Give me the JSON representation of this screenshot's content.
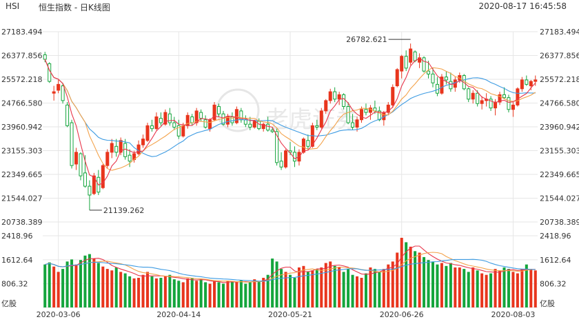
{
  "header": {
    "symbol": "HSI",
    "title": "恒生指数 - 日K线图",
    "timestamp": "2020-08-17 16:45:58"
  },
  "watermark": "老虎证券",
  "colors": {
    "up": "#e8351d",
    "down": "#14a53c",
    "ma5": "#e8354a",
    "ma10": "#f3a24a",
    "ma20": "#3d9be2",
    "grid": "#e6e6e6"
  },
  "chart_data": {
    "type": "candlestick",
    "price_axis": {
      "ylim": [
        20738.389,
        27183.494
      ],
      "tick_labels": [
        "27183.494",
        "26377.856",
        "25572.218",
        "24766.580",
        "23960.942",
        "23155.303",
        "22349.665",
        "21544.027",
        "20738.389"
      ]
    },
    "volume_axis": {
      "ylim": [
        0,
        2418.96
      ],
      "unit": "亿股",
      "tick_labels": [
        "2418.96",
        "1612.64",
        "806.32"
      ]
    },
    "x_labels": [
      "2020-03-06",
      "2020-04-14",
      "2020-05-21",
      "2020-06-26",
      "2020-08-03"
    ],
    "x_label_index": [
      3,
      30,
      55,
      80,
      105
    ],
    "annotations": {
      "high_label": "26782.621",
      "high_index": 82,
      "high_value": 26782.621,
      "low_label": "21139.262",
      "low_index": 10,
      "low_value": 21139.262
    },
    "ohlc": [
      [
        26400,
        26500,
        26150,
        26250
      ],
      [
        26100,
        26150,
        25450,
        25500
      ],
      [
        25100,
        25350,
        24850,
        25150
      ],
      [
        25200,
        25550,
        25100,
        25400
      ],
      [
        25350,
        25450,
        24750,
        24850
      ],
      [
        24700,
        24800,
        23950,
        24000
      ],
      [
        24100,
        24200,
        22550,
        22650
      ],
      [
        22700,
        23250,
        22500,
        23100
      ],
      [
        23050,
        23100,
        22150,
        22300
      ],
      [
        22400,
        23000,
        21900,
        21950
      ],
      [
        21950,
        22150,
        21139.262,
        21650
      ],
      [
        21700,
        22400,
        21650,
        22300
      ],
      [
        22250,
        22500,
        21650,
        21750
      ],
      [
        21900,
        22700,
        21850,
        22650
      ],
      [
        22650,
        23200,
        22550,
        23100
      ],
      [
        23100,
        23550,
        22900,
        23400
      ],
      [
        23300,
        23550,
        22950,
        23100
      ],
      [
        23100,
        23600,
        23000,
        23500
      ],
      [
        23400,
        23550,
        22850,
        22950
      ],
      [
        23000,
        23200,
        22600,
        22800
      ],
      [
        22850,
        23150,
        22750,
        23050
      ],
      [
        23050,
        23500,
        23000,
        23350
      ],
      [
        23350,
        23700,
        23250,
        23550
      ],
      [
        23500,
        24100,
        23450,
        24000
      ],
      [
        24000,
        24200,
        23800,
        23900
      ],
      [
        23900,
        24450,
        23850,
        24300
      ],
      [
        24250,
        24450,
        24000,
        24100
      ],
      [
        24050,
        24550,
        24000,
        24450
      ],
      [
        24400,
        24600,
        24000,
        24100
      ],
      [
        24100,
        24300,
        23850,
        23950
      ],
      [
        24000,
        24200,
        23550,
        23650
      ],
      [
        23650,
        24100,
        23600,
        24000
      ],
      [
        24000,
        24450,
        23900,
        24350
      ],
      [
        24300,
        24400,
        24000,
        24100
      ],
      [
        24100,
        24600,
        24000,
        24500
      ],
      [
        24450,
        24550,
        24150,
        24250
      ],
      [
        24200,
        24350,
        23900,
        23950
      ],
      [
        23900,
        24250,
        23800,
        24200
      ],
      [
        24200,
        24800,
        24150,
        24700
      ],
      [
        24650,
        24750,
        24300,
        24400
      ],
      [
        24400,
        24500,
        24000,
        24050
      ],
      [
        24050,
        24400,
        23950,
        24300
      ],
      [
        24300,
        24450,
        24000,
        24100
      ],
      [
        24100,
        24650,
        24050,
        24550
      ],
      [
        24500,
        24600,
        24100,
        24200
      ],
      [
        24200,
        24350,
        23950,
        24050
      ],
      [
        24050,
        24300,
        23850,
        23950
      ],
      [
        23950,
        24200,
        23900,
        24150
      ],
      [
        24150,
        24250,
        23850,
        23900
      ],
      [
        23900,
        24100,
        23800,
        24050
      ],
      [
        24050,
        24300,
        23800,
        23850
      ],
      [
        23850,
        23950,
        23750,
        23800
      ],
      [
        23800,
        23900,
        22650,
        22750
      ],
      [
        22800,
        23100,
        22500,
        22600
      ],
      [
        22600,
        23200,
        22550,
        23150
      ],
      [
        23150,
        23450,
        23000,
        23100
      ],
      [
        23100,
        23300,
        22600,
        22800
      ],
      [
        22800,
        23200,
        22650,
        23100
      ],
      [
        23100,
        23600,
        23050,
        23550
      ],
      [
        23500,
        23700,
        23200,
        23300
      ],
      [
        23300,
        24100,
        23250,
        24000
      ],
      [
        24000,
        24200,
        23850,
        23950
      ],
      [
        23950,
        24600,
        23900,
        24500
      ],
      [
        24500,
        24900,
        24400,
        24850
      ],
      [
        24850,
        25250,
        24750,
        25150
      ],
      [
        25150,
        25300,
        24800,
        24900
      ],
      [
        24900,
        25150,
        24700,
        25050
      ],
      [
        25050,
        25100,
        24550,
        24650
      ],
      [
        24650,
        24800,
        24050,
        24100
      ],
      [
        24100,
        24400,
        23850,
        23950
      ],
      [
        23950,
        24300,
        23800,
        24200
      ],
      [
        24200,
        24650,
        24100,
        24550
      ],
      [
        24550,
        24750,
        24350,
        24450
      ],
      [
        24450,
        24700,
        24200,
        24600
      ],
      [
        24600,
        24850,
        24400,
        24500
      ],
      [
        24500,
        24650,
        24150,
        24200
      ],
      [
        24200,
        24500,
        24000,
        24450
      ],
      [
        24450,
        24800,
        24350,
        24700
      ],
      [
        24700,
        25400,
        24600,
        25300
      ],
      [
        25350,
        25950,
        25300,
        25900
      ],
      [
        25850,
        26400,
        25600,
        26350
      ],
      [
        26350,
        26550,
        25850,
        25950
      ],
      [
        26150,
        26782.621,
        26050,
        26600
      ],
      [
        26500,
        26550,
        26150,
        26200
      ],
      [
        26150,
        26450,
        25950,
        26300
      ],
      [
        26300,
        26350,
        25800,
        25850
      ],
      [
        25850,
        26200,
        25600,
        25750
      ],
      [
        25750,
        25950,
        25300,
        25450
      ],
      [
        25400,
        25650,
        25000,
        25100
      ],
      [
        25100,
        25750,
        25050,
        25650
      ],
      [
        25650,
        25850,
        25400,
        25550
      ],
      [
        25500,
        25800,
        25150,
        25250
      ],
      [
        25300,
        25650,
        25150,
        25550
      ],
      [
        25550,
        25800,
        25450,
        25700
      ],
      [
        25700,
        25750,
        25200,
        25250
      ],
      [
        25250,
        25300,
        24800,
        24900
      ],
      [
        24900,
        25200,
        24750,
        25100
      ],
      [
        25100,
        25200,
        24650,
        24750
      ],
      [
        24750,
        25000,
        24550,
        24850
      ],
      [
        24850,
        25100,
        24650,
        24900
      ],
      [
        24900,
        25000,
        24500,
        24600
      ],
      [
        24600,
        24900,
        24350,
        24800
      ],
      [
        24800,
        25150,
        24700,
        25050
      ],
      [
        25050,
        25300,
        24900,
        24950
      ],
      [
        24950,
        25050,
        24450,
        24550
      ],
      [
        24550,
        24800,
        24300,
        24700
      ],
      [
        24700,
        25300,
        24650,
        25250
      ],
      [
        25250,
        25650,
        25150,
        25550
      ],
      [
        25550,
        25700,
        25350,
        25400
      ],
      [
        25350,
        25550,
        25200,
        25500
      ],
      [
        25500,
        25700,
        25350,
        25550
      ]
    ],
    "volume": [
      1450,
      1520,
      1380,
      1200,
      1300,
      1550,
      1620,
      1450,
      1600,
      1750,
      1800,
      1650,
      1500,
      1380,
      1300,
      1250,
      1350,
      1200,
      1150,
      1050,
      980,
      1000,
      1100,
      1200,
      1050,
      980,
      1000,
      1050,
      1100,
      950,
      900,
      850,
      980,
      1000,
      900,
      950,
      850,
      800,
      900,
      850,
      800,
      900,
      880,
      850,
      920,
      800,
      850,
      950,
      880,
      1000,
      1100,
      1650,
      1550,
      1300,
      1200,
      1100,
      1000,
      1350,
      1400,
      1200,
      1250,
      1300,
      1350,
      1500,
      1550,
      1400,
      1350,
      1200,
      1300,
      1100,
      1050,
      1000,
      1150,
      1350,
      1300,
      1200,
      1300,
      1450,
      1550,
      1850,
      2350,
      2200,
      2050,
      1900,
      1850,
      1700,
      1600,
      1550,
      1450,
      1500,
      1400,
      1500,
      1350,
      1350,
      1300,
      1200,
      1350,
      1250,
      1150,
      1100,
      1150,
      1300,
      1250,
      1350,
      1300,
      1200,
      1150,
      1300,
      1450,
      1300,
      1250
    ]
  }
}
